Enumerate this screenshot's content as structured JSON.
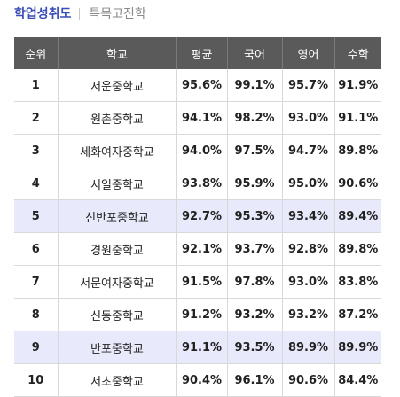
{
  "tabs": [
    {
      "label": "학업성취도",
      "active": true
    },
    {
      "label": "특목고진학",
      "active": false
    }
  ],
  "table": {
    "headers": [
      "순위",
      "학교",
      "평균",
      "국어",
      "영어",
      "수학"
    ],
    "rows": [
      {
        "rank": "1",
        "school": "서운중학교",
        "avg": "95.6%",
        "korean": "99.1%",
        "english": "95.7%",
        "math": "91.9%",
        "highlight": false
      },
      {
        "rank": "2",
        "school": "원촌중학교",
        "avg": "94.1%",
        "korean": "98.2%",
        "english": "93.0%",
        "math": "91.1%",
        "highlight": false
      },
      {
        "rank": "3",
        "school": "세화여자중학교",
        "avg": "94.0%",
        "korean": "97.5%",
        "english": "94.7%",
        "math": "89.8%",
        "highlight": false
      },
      {
        "rank": "4",
        "school": "서일중학교",
        "avg": "93.8%",
        "korean": "95.9%",
        "english": "95.0%",
        "math": "90.6%",
        "highlight": false
      },
      {
        "rank": "5",
        "school": "신반포중학교",
        "avg": "92.7%",
        "korean": "95.3%",
        "english": "93.4%",
        "math": "89.4%",
        "highlight": true
      },
      {
        "rank": "6",
        "school": "경원중학교",
        "avg": "92.1%",
        "korean": "93.7%",
        "english": "92.8%",
        "math": "89.8%",
        "highlight": false
      },
      {
        "rank": "7",
        "school": "서문여자중학교",
        "avg": "91.5%",
        "korean": "97.8%",
        "english": "93.0%",
        "math": "83.8%",
        "highlight": false
      },
      {
        "rank": "8",
        "school": "신동중학교",
        "avg": "91.2%",
        "korean": "93.2%",
        "english": "93.2%",
        "math": "87.2%",
        "highlight": false
      },
      {
        "rank": "9",
        "school": "반포중학교",
        "avg": "91.1%",
        "korean": "93.5%",
        "english": "89.9%",
        "math": "89.9%",
        "highlight": true
      },
      {
        "rank": "10",
        "school": "서초중학교",
        "avg": "90.4%",
        "korean": "96.1%",
        "english": "90.6%",
        "math": "84.4%",
        "highlight": false
      }
    ]
  },
  "colors": {
    "active_tab": "#3b4db8",
    "inactive_tab": "#8a8a8a",
    "header_bg": "#5a5a5a",
    "header_text": "#ffffff",
    "highlight_row": "#e8e9fb",
    "border": "#d9d9d9"
  }
}
